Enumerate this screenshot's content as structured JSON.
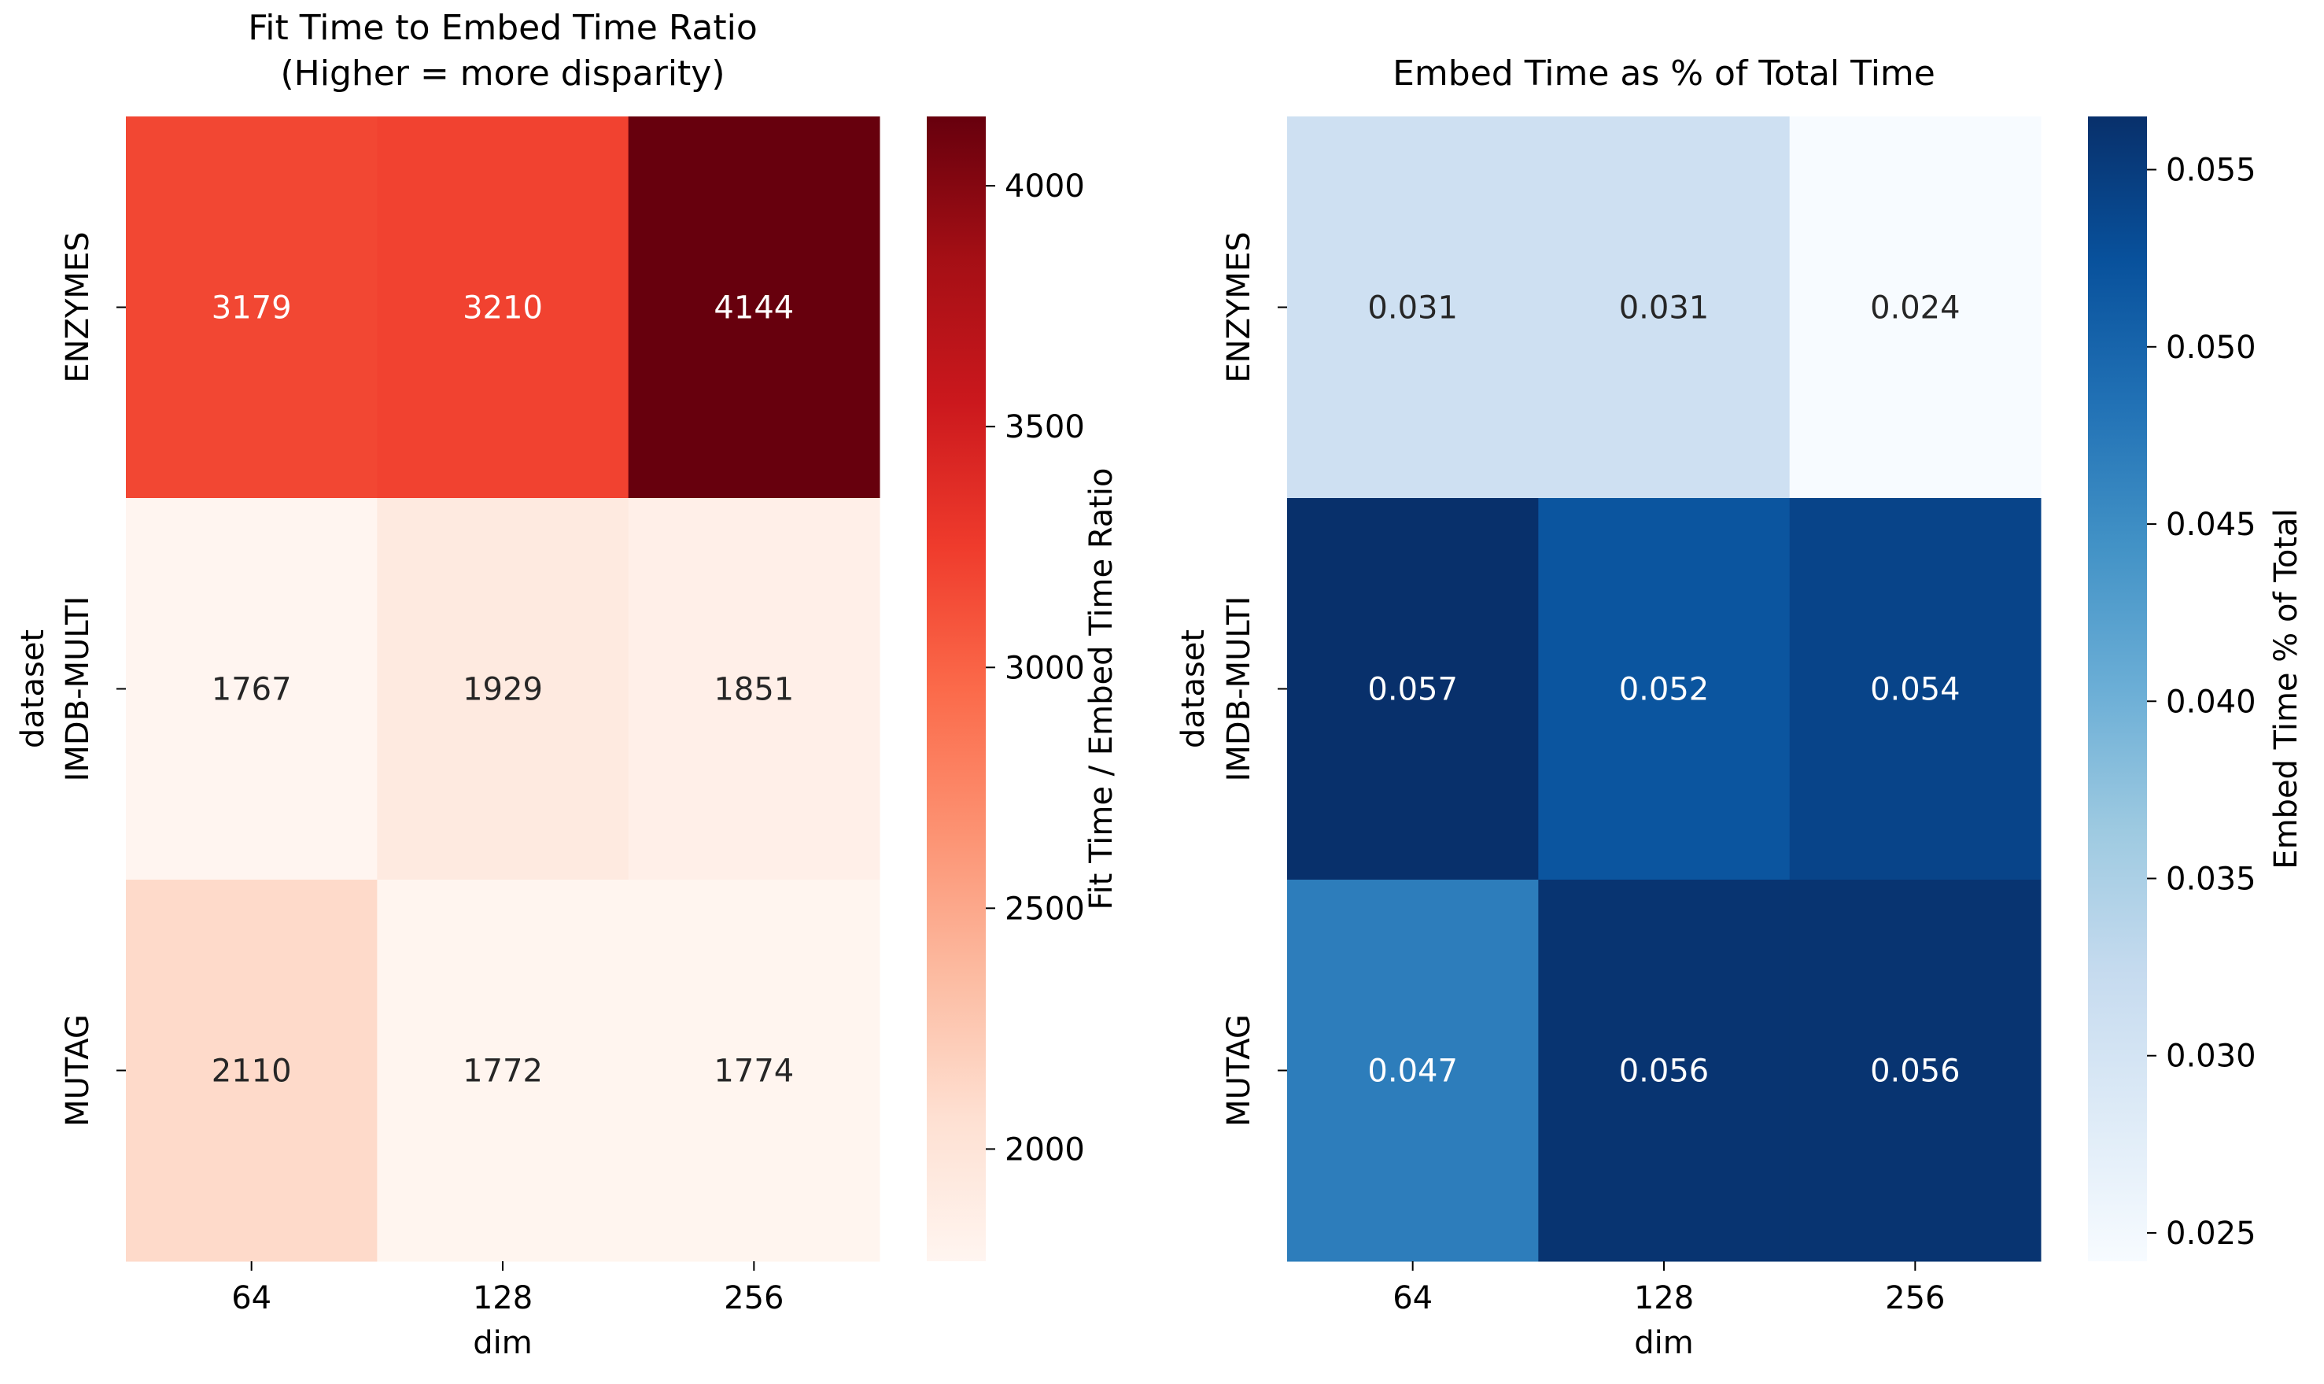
{
  "chart_data": [
    {
      "type": "heatmap",
      "title": "Fit Time to Embed Time Ratio\n(Higher = more disparity)",
      "xlabel": "dim",
      "ylabel": "dataset",
      "x_categories": [
        "64",
        "128",
        "256"
      ],
      "y_categories": [
        "ENZYMES",
        "IMDB-MULTI",
        "MUTAG"
      ],
      "values": [
        [
          3179,
          3210,
          4144
        ],
        [
          1767,
          1929,
          1851
        ],
        [
          2110,
          1772,
          1774
        ]
      ],
      "cell_labels": [
        [
          "3179",
          "3210",
          "4144"
        ],
        [
          "1767",
          "1929",
          "1851"
        ],
        [
          "2110",
          "1772",
          "1774"
        ]
      ],
      "colormap": "Reds",
      "colors": [
        "#fff5f0",
        "#fee0d2",
        "#fcbba1",
        "#fc9272",
        "#fb6a4a",
        "#ef3b2c",
        "#cb181d",
        "#a50f15",
        "#67000d"
      ],
      "vmin": 1767,
      "vmax": 4144,
      "colorbar": {
        "label": "Fit Time / Embed Time Ratio",
        "ticks": [
          2000,
          2500,
          3000,
          3500,
          4000
        ],
        "tick_labels": [
          "2000",
          "2500",
          "3000",
          "3500",
          "4000"
        ]
      },
      "grid": false
    },
    {
      "type": "heatmap",
      "title": "Embed Time as % of Total Time",
      "xlabel": "dim",
      "ylabel": "dataset",
      "x_categories": [
        "64",
        "128",
        "256"
      ],
      "y_categories": [
        "ENZYMES",
        "IMDB-MULTI",
        "MUTAG"
      ],
      "values": [
        [
          0.031,
          0.031,
          0.024
        ],
        [
          0.057,
          0.052,
          0.054
        ],
        [
          0.047,
          0.056,
          0.056
        ]
      ],
      "cell_labels": [
        [
          "0.031",
          "0.031",
          "0.024"
        ],
        [
          "0.057",
          "0.052",
          "0.054"
        ],
        [
          "0.047",
          "0.056",
          "0.056"
        ]
      ],
      "colormap": "Blues",
      "colors": [
        "#f7fbff",
        "#deebf7",
        "#c6dbef",
        "#9ecae1",
        "#6baed6",
        "#4292c6",
        "#2171b5",
        "#08519c",
        "#08306b"
      ],
      "vmin": 0.0242,
      "vmax": 0.0565,
      "colorbar": {
        "label": "Embed Time % of Total",
        "ticks": [
          0.025,
          0.03,
          0.035,
          0.04,
          0.045,
          0.05,
          0.055
        ],
        "tick_labels": [
          "0.025",
          "0.030",
          "0.035",
          "0.040",
          "0.045",
          "0.050",
          "0.055"
        ]
      },
      "grid": false
    }
  ]
}
